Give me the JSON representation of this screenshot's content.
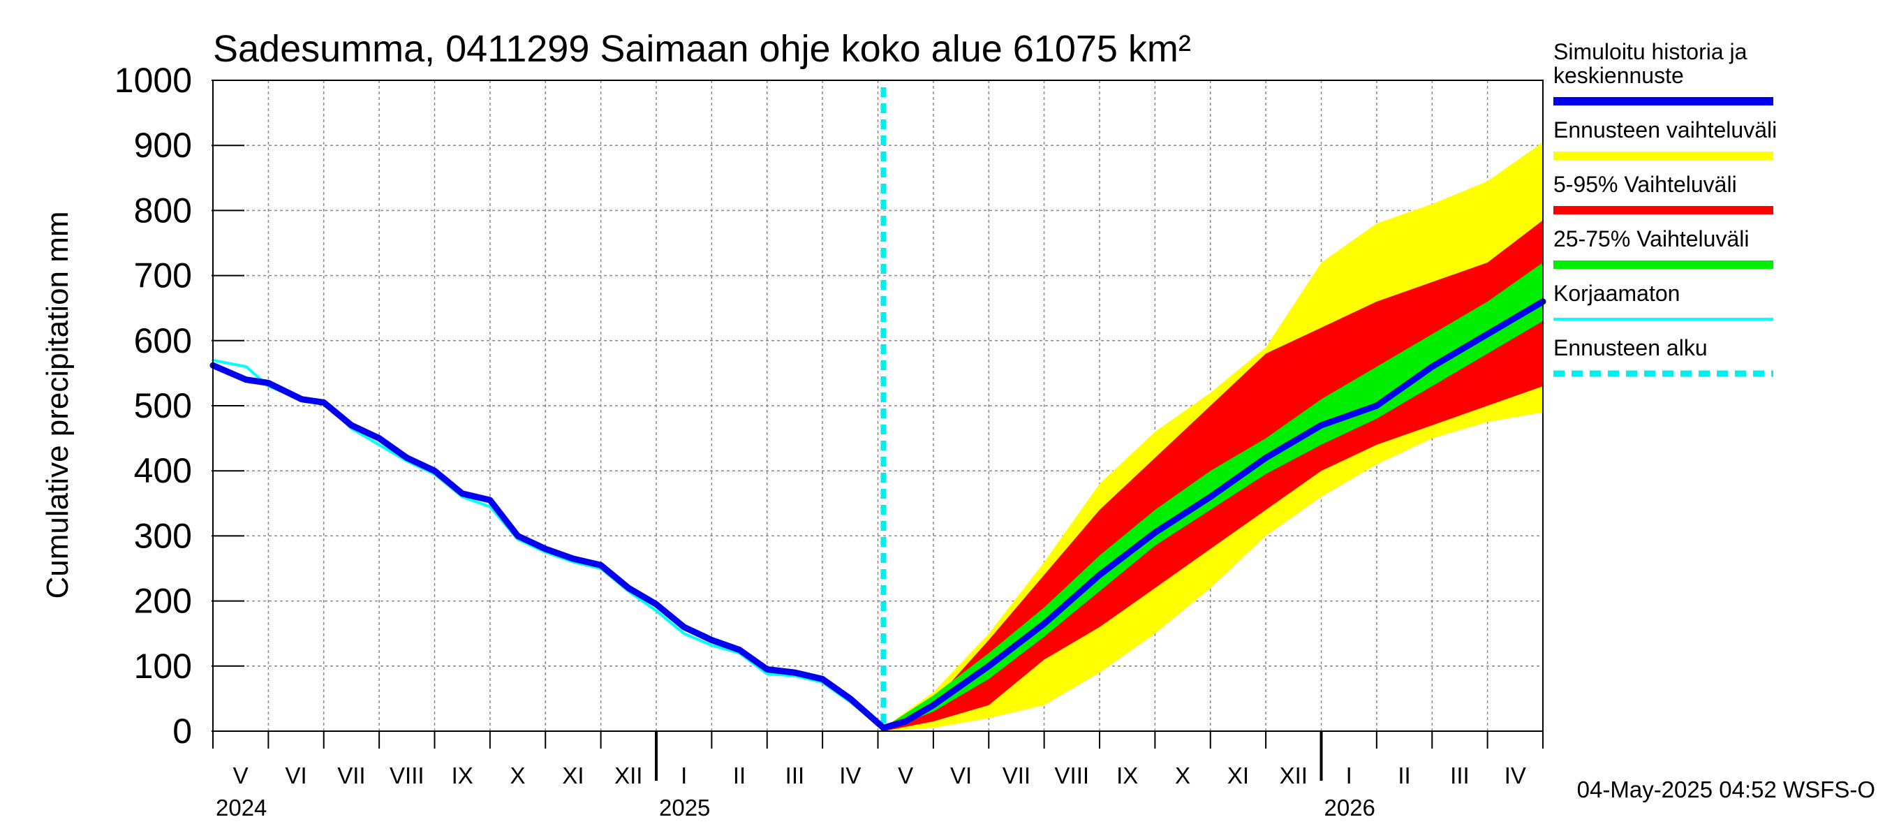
{
  "chart_data": {
    "type": "area",
    "title": "Sadesumma, 0411299 Saimaan ohje koko alue 61075 km²",
    "ylabel": "Cumulative precipitation   mm",
    "ylim": [
      0,
      1000
    ],
    "yticks": [
      0,
      100,
      200,
      300,
      400,
      500,
      600,
      700,
      800,
      900,
      1000
    ],
    "x_unit": "months since 2024-05-01",
    "xlim": [
      0,
      24
    ],
    "months": [
      "V",
      "VI",
      "VII",
      "VIII",
      "IX",
      "X",
      "XI",
      "XII",
      "I",
      "II",
      "III",
      "IV",
      "V",
      "VI",
      "VII",
      "VIII",
      "IX",
      "X",
      "XI",
      "XII",
      "I",
      "II",
      "III",
      "IV"
    ],
    "years": [
      {
        "label": "2024",
        "x": 0
      },
      {
        "label": "2025",
        "x": 8
      },
      {
        "label": "2026",
        "x": 20
      }
    ],
    "forecast_start": 12.1,
    "series": [
      {
        "name": "Simuloitu historia ja keskiennuste",
        "color": "#0000ee",
        "x": [
          0,
          0.6,
          1.0,
          1.6,
          2.0,
          2.5,
          3.0,
          3.5,
          4.0,
          4.5,
          5.0,
          5.5,
          6.0,
          6.5,
          7.0,
          7.5,
          8.0,
          8.5,
          9.0,
          9.5,
          10.0,
          10.5,
          11.0,
          11.5,
          12.1,
          12.5,
          13.0,
          14.0,
          15.0,
          16.0,
          17.0,
          18.0,
          19.0,
          20.0,
          21.0,
          22.0,
          23.0,
          24.0
        ],
        "y": [
          562,
          540,
          535,
          510,
          505,
          470,
          450,
          420,
          400,
          365,
          355,
          300,
          280,
          265,
          255,
          220,
          195,
          160,
          140,
          125,
          95,
          90,
          80,
          50,
          5,
          15,
          40,
          100,
          165,
          240,
          305,
          360,
          420,
          470,
          500,
          560,
          610,
          660
        ]
      },
      {
        "name": "Korjaamaton",
        "color": "#00ffff",
        "x": [
          0,
          0.6,
          1.0,
          1.6,
          2.0,
          2.5,
          3.0,
          3.5,
          4.0,
          4.5,
          5.0,
          5.5,
          6.0,
          6.5,
          7.0,
          7.5,
          8.0,
          8.5,
          9.0,
          9.5,
          10.0,
          10.5,
          11.0,
          11.5,
          12.1
        ],
        "y": [
          570,
          560,
          530,
          510,
          505,
          465,
          440,
          415,
          395,
          360,
          345,
          295,
          275,
          260,
          250,
          215,
          185,
          150,
          132,
          120,
          88,
          85,
          75,
          45,
          5
        ]
      }
    ],
    "bands": [
      {
        "name": "Ennusteen vaihteluväli",
        "color": "#ffff00",
        "x": [
          12.1,
          13,
          14,
          15,
          16,
          17,
          18,
          19,
          20,
          21,
          22,
          23,
          24
        ],
        "low": [
          0,
          5,
          20,
          40,
          90,
          150,
          220,
          300,
          360,
          410,
          450,
          475,
          490
        ],
        "high": [
          5,
          60,
          150,
          260,
          380,
          460,
          520,
          590,
          720,
          780,
          810,
          845,
          905
        ]
      },
      {
        "name": "5-95% Vaihteluväli",
        "color": "#ff0000",
        "x": [
          12.1,
          13,
          14,
          15,
          16,
          17,
          18,
          19,
          20,
          21,
          22,
          23,
          24
        ],
        "low": [
          0,
          15,
          40,
          110,
          160,
          220,
          280,
          340,
          400,
          440,
          470,
          500,
          530
        ],
        "high": [
          5,
          45,
          140,
          240,
          340,
          420,
          500,
          580,
          620,
          660,
          690,
          720,
          785
        ]
      },
      {
        "name": "25-75% Vaihteluväli",
        "color": "#00ee00",
        "x": [
          12.1,
          13,
          14,
          15,
          16,
          17,
          18,
          19,
          20,
          21,
          22,
          23,
          24
        ],
        "low": [
          0,
          30,
          80,
          145,
          215,
          285,
          340,
          395,
          440,
          480,
          530,
          580,
          630
        ],
        "high": [
          5,
          55,
          120,
          190,
          270,
          340,
          400,
          450,
          510,
          560,
          610,
          660,
          720
        ]
      }
    ]
  },
  "legend": {
    "items": [
      {
        "label_lines": [
          "Simuloitu historia ja",
          "keskiennuste"
        ],
        "color": "#0000ee",
        "style": "thick"
      },
      {
        "label_lines": [
          "Ennusteen vaihteluväli"
        ],
        "color": "#ffff00",
        "style": "thick"
      },
      {
        "label_lines": [
          "5-95% Vaihteluväli"
        ],
        "color": "#ff0000",
        "style": "thick"
      },
      {
        "label_lines": [
          "25-75% Vaihteluväli"
        ],
        "color": "#00ee00",
        "style": "thick"
      },
      {
        "label_lines": [
          "Korjaamaton"
        ],
        "color": "#00ffff",
        "style": "thin"
      },
      {
        "label_lines": [
          "Ennusteen alku"
        ],
        "color": "#00eeee",
        "style": "dashed"
      }
    ]
  },
  "footer": "04-May-2025 04:52 WSFS-O"
}
